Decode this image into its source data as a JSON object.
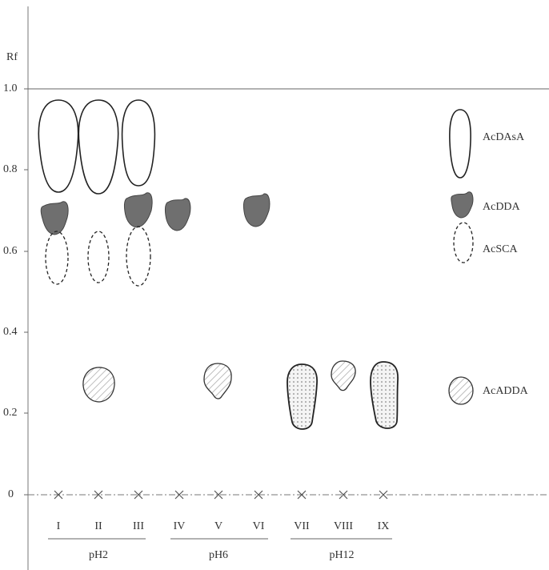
{
  "axis": {
    "label": "Rf",
    "ticks": [
      "1.0",
      "0.8",
      "0.6",
      "0.4",
      "0.2",
      "0"
    ]
  },
  "lanes": [
    "I",
    "II",
    "III",
    "IV",
    "V",
    "VI",
    "VII",
    "VIII",
    "IX"
  ],
  "groups": [
    "pH2",
    "pH6",
    "pH12"
  ],
  "legend": [
    "AcDAsA",
    "AcDDA",
    "AcSCA",
    "AcADDA"
  ]
}
